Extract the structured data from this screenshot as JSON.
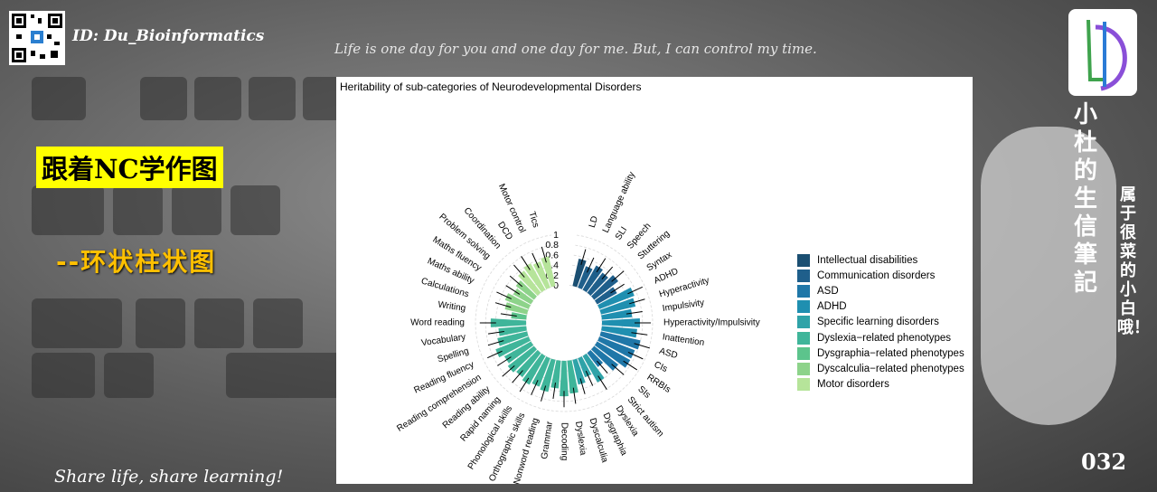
{
  "header": {
    "id_text": "ID: Du_Bioinformatics",
    "motto": "Life is one day for you and one day for me. But, I can control my time."
  },
  "left": {
    "title_cn": "跟着NC学作图",
    "subtitle_cn": "--环状柱状图",
    "footer": "Share life, share learning!"
  },
  "right": {
    "vertical_title": "小杜的生信筆記",
    "vertical_subtitle": "属于很菜的小白哦！",
    "page_number": "032"
  },
  "chart_data": {
    "type": "bar",
    "polar": true,
    "title": "Heritability of sub-categories of Neurodevelopmental Disorders",
    "ylim": [
      0,
      1
    ],
    "y_ticks": [
      "0",
      "0.2",
      "0.4",
      "0.6",
      "0.8",
      "1"
    ],
    "legend_position": "right",
    "groups": [
      {
        "name": "Intellectual disabilities",
        "color": "#1b4f72"
      },
      {
        "name": "Communication disorders",
        "color": "#1f5f8b"
      },
      {
        "name": "ASD",
        "color": "#1f77a8"
      },
      {
        "name": "ADHD",
        "color": "#1f8fb0"
      },
      {
        "name": "Specific learning disorders",
        "color": "#2fa3a8"
      },
      {
        "name": "Dyslexia−related phenotypes",
        "color": "#3fb59a"
      },
      {
        "name": "Dysgraphia−related phenotypes",
        "color": "#5cc48c"
      },
      {
        "name": "Dyscalculia−related phenotypes",
        "color": "#8dd38a"
      },
      {
        "name": "Motor disorders",
        "color": "#b6e49a"
      }
    ],
    "categories": [
      {
        "label": "LD",
        "group": 0,
        "value": 0.55
      },
      {
        "label": "Language ability",
        "group": 1,
        "value": 0.45
      },
      {
        "label": "SLI",
        "group": 1,
        "value": 0.55
      },
      {
        "label": "Speech",
        "group": 1,
        "value": 0.5
      },
      {
        "label": "Stuttering",
        "group": 1,
        "value": 0.6
      },
      {
        "label": "Syntax",
        "group": 1,
        "value": 0.45
      },
      {
        "label": "ADHD",
        "group": 3,
        "value": 0.74
      },
      {
        "label": "Hyperactivity",
        "group": 3,
        "value": 0.7
      },
      {
        "label": "Impulsivity",
        "group": 3,
        "value": 0.6
      },
      {
        "label": "Hyperactivity/Impulsivity",
        "group": 3,
        "value": 0.75
      },
      {
        "label": "Inattention",
        "group": 3,
        "value": 0.7
      },
      {
        "label": "ASD",
        "group": 2,
        "value": 0.8
      },
      {
        "label": "CIs",
        "group": 2,
        "value": 0.75
      },
      {
        "label": "RRBIs",
        "group": 2,
        "value": 0.75
      },
      {
        "label": "SIs",
        "group": 2,
        "value": 0.6
      },
      {
        "label": "Strict autism",
        "group": 2,
        "value": 0.35
      },
      {
        "label": "Dyslexia",
        "group": 4,
        "value": 0.6
      },
      {
        "label": "Dysgraphia",
        "group": 4,
        "value": 0.4
      },
      {
        "label": "Dyscalculia",
        "group": 4,
        "value": 0.5
      },
      {
        "label": "Dyslexia",
        "group": 5,
        "value": 0.65
      },
      {
        "label": "Decoding",
        "group": 5,
        "value": 0.7
      },
      {
        "label": "Grammar",
        "group": 5,
        "value": 0.55
      },
      {
        "label": "Nonword reading",
        "group": 5,
        "value": 0.65
      },
      {
        "label": "Orthographic skills",
        "group": 5,
        "value": 0.6
      },
      {
        "label": "Phonological skills",
        "group": 5,
        "value": 0.65
      },
      {
        "label": "Rapid naming",
        "group": 5,
        "value": 0.6
      },
      {
        "label": "Reading ability",
        "group": 5,
        "value": 0.65
      },
      {
        "label": "Reading comprehension",
        "group": 5,
        "value": 0.6
      },
      {
        "label": "Reading fluency",
        "group": 5,
        "value": 0.7
      },
      {
        "label": "Spelling",
        "group": 5,
        "value": 0.6
      },
      {
        "label": "Vocabulary",
        "group": 5,
        "value": 0.55
      },
      {
        "label": "Word reading",
        "group": 5,
        "value": 0.7
      },
      {
        "label": "Writing",
        "group": 6,
        "value": 0.3
      },
      {
        "label": "Calculations",
        "group": 7,
        "value": 0.45
      },
      {
        "label": "Maths ability",
        "group": 7,
        "value": 0.5
      },
      {
        "label": "Maths fluency",
        "group": 7,
        "value": 0.4
      },
      {
        "label": "Problem solving",
        "group": 7,
        "value": 0.45
      },
      {
        "label": "Coordination",
        "group": 8,
        "value": 0.55
      },
      {
        "label": "DCD",
        "group": 8,
        "value": 0.6
      },
      {
        "label": "Motor control",
        "group": 8,
        "value": 0.55
      },
      {
        "label": "Tics",
        "group": 8,
        "value": 0.6
      }
    ]
  }
}
